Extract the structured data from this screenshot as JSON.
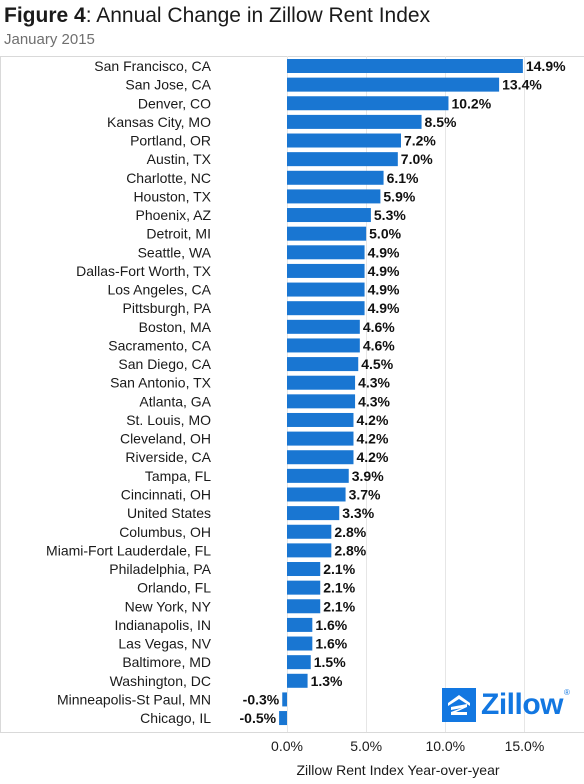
{
  "header": {
    "title_lead": "Figure 4",
    "title_rest": ": Annual Change in Zillow Rent Index",
    "subtitle": "January 2015"
  },
  "logo": {
    "text": "Zillow",
    "reg": "®",
    "icon": "zillow-house-icon",
    "color": "#1277e1"
  },
  "chart_data": {
    "type": "bar",
    "orientation": "horizontal",
    "title": "Annual Change in Zillow Rent Index",
    "subtitle": "January 2015",
    "xlabel": "Zillow Rent Index Year-over-year",
    "ylabel": "",
    "xlim": [
      -0.5,
      15.0
    ],
    "x_ticks": [
      0,
      5,
      10,
      15
    ],
    "x_tick_labels": [
      "0.0%",
      "5.0%",
      "10.0%",
      "15.0%"
    ],
    "grid": true,
    "bar_color": "#1976d2",
    "categories": [
      "San Francisco, CA",
      "San Jose, CA",
      "Denver, CO",
      "Kansas City, MO",
      "Portland, OR",
      "Austin, TX",
      "Charlotte, NC",
      "Houston, TX",
      "Phoenix, AZ",
      "Detroit, MI",
      "Seattle, WA",
      "Dallas-Fort Worth, TX",
      "Los Angeles, CA",
      "Pittsburgh, PA",
      "Boston, MA",
      "Sacramento, CA",
      "San Diego, CA",
      "San Antonio, TX",
      "Atlanta, GA",
      "St. Louis, MO",
      "Cleveland, OH",
      "Riverside, CA",
      "Tampa, FL",
      "Cincinnati, OH",
      "United States",
      "Columbus, OH",
      "Miami-Fort Lauderdale, FL",
      "Philadelphia, PA",
      "Orlando, FL",
      "New York, NY",
      "Indianapolis, IN",
      "Las Vegas, NV",
      "Baltimore, MD",
      "Washington, DC",
      "Minneapolis-St Paul, MN",
      "Chicago, IL"
    ],
    "values": [
      14.9,
      13.4,
      10.2,
      8.5,
      7.2,
      7.0,
      6.1,
      5.9,
      5.3,
      5.0,
      4.9,
      4.9,
      4.9,
      4.9,
      4.6,
      4.6,
      4.5,
      4.3,
      4.3,
      4.2,
      4.2,
      4.2,
      3.9,
      3.7,
      3.3,
      2.8,
      2.8,
      2.1,
      2.1,
      2.1,
      1.6,
      1.6,
      1.5,
      1.3,
      -0.3,
      -0.5
    ],
    "value_labels": [
      "14.9%",
      "13.4%",
      "10.2%",
      "8.5%",
      "7.2%",
      "7.0%",
      "6.1%",
      "5.9%",
      "5.3%",
      "5.0%",
      "4.9%",
      "4.9%",
      "4.9%",
      "4.9%",
      "4.6%",
      "4.6%",
      "4.5%",
      "4.3%",
      "4.3%",
      "4.2%",
      "4.2%",
      "4.2%",
      "3.9%",
      "3.7%",
      "3.3%",
      "2.8%",
      "2.8%",
      "2.1%",
      "2.1%",
      "2.1%",
      "1.6%",
      "1.6%",
      "1.5%",
      "1.3%",
      "-0.3%",
      "-0.5%"
    ]
  }
}
